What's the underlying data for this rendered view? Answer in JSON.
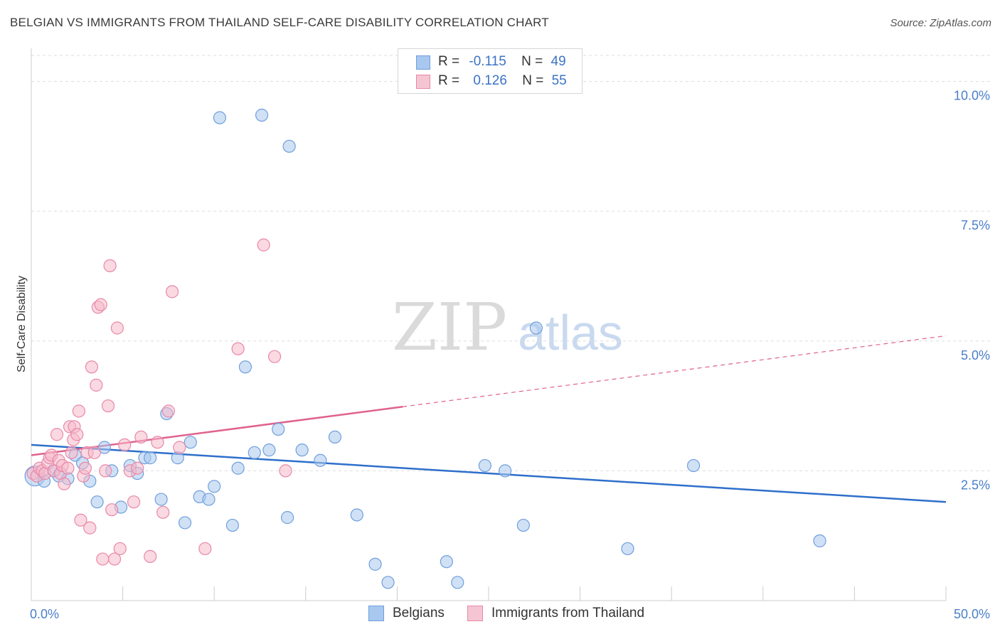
{
  "title": "BELGIAN VS IMMIGRANTS FROM THAILAND SELF-CARE DISABILITY CORRELATION CHART",
  "source": "Source: ZipAtlas.com",
  "legend": {
    "rows": [
      {
        "r_label": "R =",
        "r_value": "-0.115",
        "n_label": "N =",
        "n_value": "49"
      },
      {
        "r_label": "R =",
        "r_value": "0.126",
        "n_label": "N =",
        "n_value": "55"
      }
    ]
  },
  "bottom_legend": [
    "Belgians",
    "Immigrants from Thailand"
  ],
  "colors": {
    "blue_fill": "#a9c8ef",
    "blue_stroke": "#6f9fdc",
    "blue_line": "#2e6fcb",
    "pink_fill": "#f5b9cb",
    "pink_stroke": "#e888a8",
    "pink_line": "#e0628e",
    "grid": "#dddddd",
    "axis_text": "#4a7fc9"
  },
  "watermark": {
    "zip": "ZIP",
    "atlas": "atlas"
  },
  "chart_data": {
    "type": "scatter",
    "title": "BELGIAN VS IMMIGRANTS FROM THAILAND SELF-CARE DISABILITY CORRELATION CHART",
    "xlabel": "",
    "ylabel": "Self-Care Disability",
    "xlim": [
      0,
      50
    ],
    "ylim": [
      0,
      10.5
    ],
    "x_tick_labels": [
      {
        "value": 0,
        "label": "0.0%"
      },
      {
        "value": 50,
        "label": "50.0%"
      }
    ],
    "y_ticks": [
      {
        "value": 2.5,
        "label": "2.5%"
      },
      {
        "value": 5.0,
        "label": "5.0%"
      },
      {
        "value": 7.5,
        "label": "7.5%"
      },
      {
        "value": 10.0,
        "label": "10.0%"
      }
    ],
    "series": [
      {
        "name": "Belgians",
        "r": -0.115,
        "n": 49,
        "trend": {
          "x0": 0,
          "y0": 3.0,
          "x1": 50,
          "y1": 1.9,
          "solid_until": 50
        },
        "points": [
          {
            "x": 0.2,
            "y": 2.4,
            "big": true
          },
          {
            "x": 0.7,
            "y": 2.3
          },
          {
            "x": 1.2,
            "y": 2.5
          },
          {
            "x": 1.5,
            "y": 2.4
          },
          {
            "x": 2.0,
            "y": 2.35
          },
          {
            "x": 2.4,
            "y": 2.8
          },
          {
            "x": 2.8,
            "y": 2.65
          },
          {
            "x": 3.2,
            "y": 2.3
          },
          {
            "x": 3.6,
            "y": 1.9
          },
          {
            "x": 4.0,
            "y": 2.95
          },
          {
            "x": 4.4,
            "y": 2.5
          },
          {
            "x": 4.9,
            "y": 1.8
          },
          {
            "x": 5.4,
            "y": 2.6
          },
          {
            "x": 5.8,
            "y": 2.45
          },
          {
            "x": 6.2,
            "y": 2.75
          },
          {
            "x": 6.5,
            "y": 2.75
          },
          {
            "x": 7.1,
            "y": 1.95
          },
          {
            "x": 7.4,
            "y": 3.6
          },
          {
            "x": 8.0,
            "y": 2.75
          },
          {
            "x": 8.4,
            "y": 1.5
          },
          {
            "x": 8.7,
            "y": 3.05
          },
          {
            "x": 9.2,
            "y": 2.0
          },
          {
            "x": 9.7,
            "y": 1.95
          },
          {
            "x": 10.0,
            "y": 2.2
          },
          {
            "x": 10.3,
            "y": 9.3
          },
          {
            "x": 11.0,
            "y": 1.45
          },
          {
            "x": 11.3,
            "y": 2.55
          },
          {
            "x": 11.7,
            "y": 4.5
          },
          {
            "x": 12.2,
            "y": 2.85
          },
          {
            "x": 12.6,
            "y": 9.35
          },
          {
            "x": 13.0,
            "y": 2.9
          },
          {
            "x": 13.5,
            "y": 3.3
          },
          {
            "x": 14.0,
            "y": 1.6
          },
          {
            "x": 14.1,
            "y": 8.75
          },
          {
            "x": 14.8,
            "y": 2.9
          },
          {
            "x": 15.8,
            "y": 2.7
          },
          {
            "x": 16.6,
            "y": 3.15
          },
          {
            "x": 17.8,
            "y": 1.65
          },
          {
            "x": 18.8,
            "y": 0.7
          },
          {
            "x": 19.5,
            "y": 0.35
          },
          {
            "x": 22.7,
            "y": 0.75
          },
          {
            "x": 23.3,
            "y": 0.35
          },
          {
            "x": 24.8,
            "y": 2.6
          },
          {
            "x": 25.9,
            "y": 2.5
          },
          {
            "x": 26.9,
            "y": 1.45
          },
          {
            "x": 27.6,
            "y": 5.25
          },
          {
            "x": 32.6,
            "y": 1.0
          },
          {
            "x": 36.2,
            "y": 2.6
          },
          {
            "x": 43.1,
            "y": 1.15
          }
        ]
      },
      {
        "name": "Immigrants from Thailand",
        "r": 0.126,
        "n": 55,
        "trend": {
          "x0": 0,
          "y0": 2.8,
          "x1": 50,
          "y1": 5.1,
          "solid_until": 20.3
        },
        "points": [
          {
            "x": 0.1,
            "y": 2.45
          },
          {
            "x": 0.3,
            "y": 2.4
          },
          {
            "x": 0.45,
            "y": 2.55
          },
          {
            "x": 0.6,
            "y": 2.5
          },
          {
            "x": 0.75,
            "y": 2.45
          },
          {
            "x": 0.9,
            "y": 2.65
          },
          {
            "x": 1.0,
            "y": 2.75
          },
          {
            "x": 1.1,
            "y": 2.8
          },
          {
            "x": 1.25,
            "y": 2.5
          },
          {
            "x": 1.4,
            "y": 3.2
          },
          {
            "x": 1.5,
            "y": 2.7
          },
          {
            "x": 1.6,
            "y": 2.45
          },
          {
            "x": 1.7,
            "y": 2.6
          },
          {
            "x": 1.8,
            "y": 2.25
          },
          {
            "x": 2.0,
            "y": 2.55
          },
          {
            "x": 2.1,
            "y": 3.35
          },
          {
            "x": 2.2,
            "y": 2.85
          },
          {
            "x": 2.3,
            "y": 3.1
          },
          {
            "x": 2.35,
            "y": 3.35
          },
          {
            "x": 2.5,
            "y": 3.2
          },
          {
            "x": 2.6,
            "y": 3.65
          },
          {
            "x": 2.7,
            "y": 1.55
          },
          {
            "x": 2.85,
            "y": 2.4
          },
          {
            "x": 2.95,
            "y": 2.55
          },
          {
            "x": 3.05,
            "y": 2.85
          },
          {
            "x": 3.2,
            "y": 1.4
          },
          {
            "x": 3.3,
            "y": 4.5
          },
          {
            "x": 3.45,
            "y": 2.85
          },
          {
            "x": 3.55,
            "y": 4.15
          },
          {
            "x": 3.65,
            "y": 5.65
          },
          {
            "x": 3.8,
            "y": 5.7
          },
          {
            "x": 3.9,
            "y": 0.8
          },
          {
            "x": 4.05,
            "y": 2.5
          },
          {
            "x": 4.2,
            "y": 3.75
          },
          {
            "x": 4.3,
            "y": 6.45
          },
          {
            "x": 4.4,
            "y": 1.75
          },
          {
            "x": 4.55,
            "y": 0.8
          },
          {
            "x": 4.7,
            "y": 5.25
          },
          {
            "x": 4.85,
            "y": 1.0
          },
          {
            "x": 5.1,
            "y": 3.0
          },
          {
            "x": 5.4,
            "y": 2.5
          },
          {
            "x": 5.6,
            "y": 1.9
          },
          {
            "x": 5.8,
            "y": 2.55
          },
          {
            "x": 6.0,
            "y": 3.15
          },
          {
            "x": 6.5,
            "y": 0.85
          },
          {
            "x": 6.9,
            "y": 3.05
          },
          {
            "x": 7.2,
            "y": 1.7
          },
          {
            "x": 7.5,
            "y": 3.65
          },
          {
            "x": 7.7,
            "y": 5.95
          },
          {
            "x": 8.1,
            "y": 2.95
          },
          {
            "x": 9.5,
            "y": 1.0
          },
          {
            "x": 11.3,
            "y": 4.85
          },
          {
            "x": 12.7,
            "y": 6.85
          },
          {
            "x": 13.3,
            "y": 4.7
          },
          {
            "x": 13.9,
            "y": 2.5
          }
        ]
      }
    ]
  }
}
